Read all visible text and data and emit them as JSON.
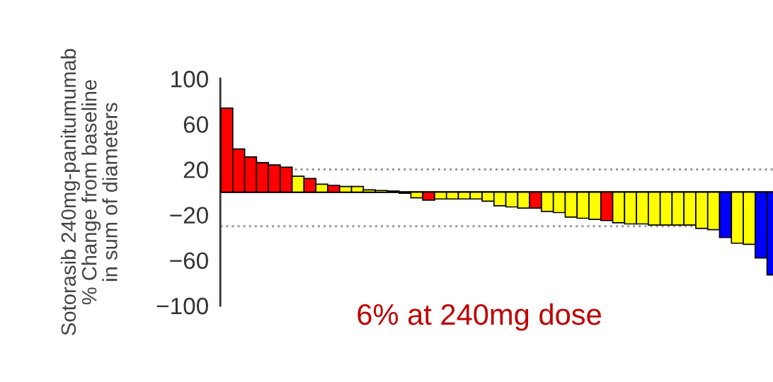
{
  "chart_data": {
    "type": "bar",
    "ylabel": "Sotorasib 240mg-panitumumab\n% Change from baseline\nin sum of diameters",
    "categories": [
      null,
      null,
      null,
      null,
      null,
      null,
      null,
      null,
      null,
      null,
      null,
      null,
      null,
      null,
      null,
      null,
      null,
      null,
      null,
      null,
      null,
      null,
      null,
      null,
      null,
      null,
      null,
      null,
      null,
      null,
      null,
      null,
      null,
      null,
      null,
      null,
      null,
      null,
      null,
      null,
      null,
      null,
      null,
      null,
      null,
      null,
      null
    ],
    "values": [
      74,
      38,
      31,
      26,
      24,
      22,
      14,
      12,
      7,
      6,
      5,
      5,
      2,
      1.5,
      1,
      -1,
      -5,
      -7,
      -6,
      -6,
      -6,
      -6,
      -8,
      -12,
      -13,
      -14,
      -14,
      -17,
      -18,
      -22,
      -23,
      -24,
      -25,
      -27,
      -28,
      -28,
      -29,
      -29,
      -29,
      -29,
      -32,
      -33,
      -40,
      -45,
      -46,
      -58,
      -73
    ],
    "colors": [
      "#ff0000",
      "#ff0000",
      "#ff0000",
      "#ff0000",
      "#ff0000",
      "#ff0000",
      "#ffff00",
      "#ff0000",
      "#ffff00",
      "#ff0000",
      "#ffff00",
      "#ffff00",
      "#ffff00",
      "#ffff00",
      "#ffff00",
      "#ffff00",
      "#ffff00",
      "#ff0000",
      "#ffff00",
      "#ffff00",
      "#ffff00",
      "#ffff00",
      "#ffff00",
      "#ffff00",
      "#ffff00",
      "#ffff00",
      "#ff0000",
      "#ffff00",
      "#ffff00",
      "#ffff00",
      "#ffff00",
      "#ffff00",
      "#ff0000",
      "#ffff00",
      "#ffff00",
      "#ffff00",
      "#ffff00",
      "#ffff00",
      "#ffff00",
      "#ffff00",
      "#ffff00",
      "#ffff00",
      "#0000ff",
      "#ffff00",
      "#ffff00",
      "#0000ff",
      "#0000ff"
    ],
    "ylim": [
      -100,
      100
    ],
    "yticks": [
      100,
      60,
      20,
      {
        "value": -20,
        "label": "−20"
      },
      {
        "value": -60,
        "label": "−60"
      },
      {
        "value": -100,
        "label": "−100"
      }
    ],
    "ref_lines": [
      {
        "axis": "y",
        "value": 0,
        "color": "#000000",
        "line_style": "solid"
      },
      {
        "axis": "y",
        "value": 20,
        "color": "#999999",
        "line_style": "dotted"
      },
      {
        "axis": "y",
        "value": -30,
        "color": "#999999",
        "line_style": "dotted"
      }
    ],
    "annotations": [
      "6% at 240mg dose"
    ]
  }
}
